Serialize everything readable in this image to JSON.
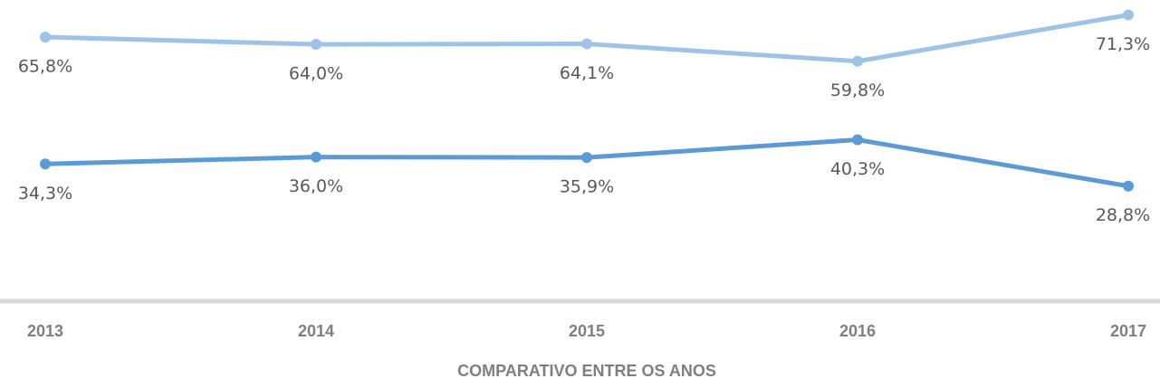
{
  "chart_data": {
    "type": "line",
    "categories": [
      "2013",
      "2014",
      "2015",
      "2016",
      "2017"
    ],
    "series": [
      {
        "color": "#9dc3e6",
        "values": [
          65.8,
          64.0,
          64.1,
          59.8,
          71.3
        ],
        "value_labels": [
          "65,8%",
          "64,0%",
          "64,1%",
          "59,8%",
          "71,3%"
        ]
      },
      {
        "color": "#5b9bd5",
        "values": [
          34.3,
          36.0,
          35.9,
          40.3,
          28.8
        ],
        "value_labels": [
          "34,3%",
          "36,0%",
          "35,9%",
          "40,3%",
          "28,8%"
        ]
      }
    ],
    "ylim": [
      0,
      75
    ],
    "xlabel": "COMPARATIVO ENTRE OS ANOS"
  }
}
